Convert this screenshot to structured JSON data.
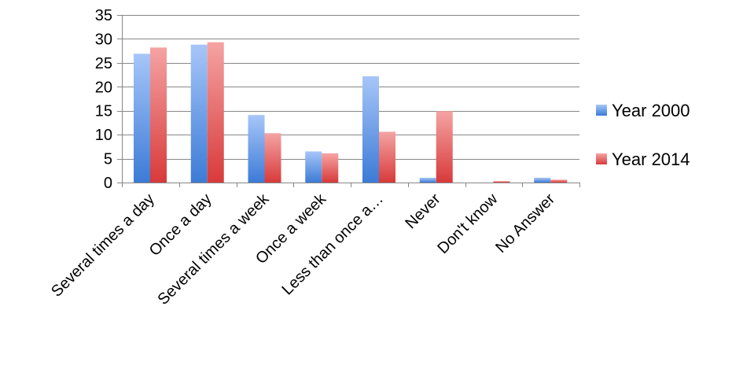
{
  "chart_data": {
    "type": "bar",
    "categories": [
      "Several times a day",
      "Once a day",
      "Several times a week",
      "Once a week",
      "Less than once a…",
      "Never",
      "Don't know",
      "No Answer"
    ],
    "series": [
      {
        "name": "Year 2000",
        "values": [
          26.9,
          28.8,
          14.1,
          6.5,
          22.2,
          1.0,
          0,
          1.0
        ],
        "color_top": "#a7c6f9",
        "color_bottom": "#3c7bd6"
      },
      {
        "name": "Year 2014",
        "values": [
          28.2,
          29.3,
          10.3,
          6.1,
          10.6,
          14.9,
          0.3,
          0.6
        ],
        "color_top": "#f5a3a3",
        "color_bottom": "#d83a3a"
      }
    ],
    "yticks": [
      0,
      5,
      10,
      15,
      20,
      25,
      30,
      35
    ],
    "ylim": [
      0,
      35
    ],
    "grid": true,
    "legend_position": "right",
    "axis_color": "#868686",
    "grid_color": "#868686"
  }
}
